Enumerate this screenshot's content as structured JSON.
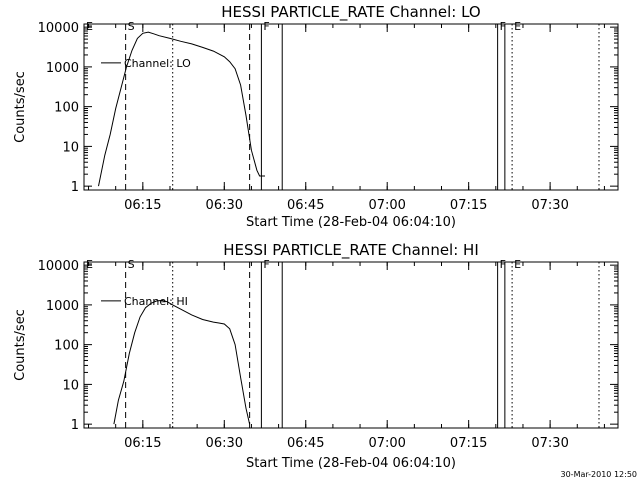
{
  "footer": {
    "timestamp": "30-Mar-2010 12:50"
  },
  "chart_data": [
    {
      "type": "line",
      "title": "HESSI PARTICLE_RATE Channel: LO",
      "xlabel": "Start Time (28-Feb-04 06:04:10)",
      "ylabel": "Counts/sec",
      "yscale": "log",
      "ylim": [
        0.8,
        12000
      ],
      "xlim": [
        "06:04:10",
        "07:42:30"
      ],
      "x_ticks": [
        "06:15",
        "06:30",
        "06:45",
        "07:00",
        "07:15",
        "07:30"
      ],
      "y_ticks": [
        "1",
        "10",
        "100",
        "1000",
        "10000"
      ],
      "legend": "Channel: LO",
      "series": [
        {
          "name": "Channel: LO",
          "x": [
            "06:06:50",
            "06:08:00",
            "06:09:00",
            "06:10:00",
            "06:11:00",
            "06:12:00",
            "06:13:00",
            "06:14:00",
            "06:15:00",
            "06:16:00",
            "06:17:00",
            "06:18:00",
            "06:20:00",
            "06:22:00",
            "06:24:00",
            "06:26:00",
            "06:28:00",
            "06:30:00",
            "06:31:00",
            "06:32:00",
            "06:33:00",
            "06:34:00",
            "06:35:00",
            "06:36:00",
            "06:36:30",
            "06:37:30"
          ],
          "values": [
            1,
            6,
            20,
            90,
            300,
            1000,
            2600,
            5200,
            7000,
            7500,
            6800,
            6100,
            5200,
            4400,
            3800,
            3100,
            2500,
            1800,
            1350,
            900,
            350,
            60,
            8,
            2.5,
            1.8,
            1.8
          ]
        }
      ],
      "markers": [
        {
          "label": "E",
          "time": "06:04:10",
          "style": "solid"
        },
        {
          "label": "S",
          "time": "06:11:50",
          "style": "dashed"
        },
        {
          "label": "",
          "time": "06:20:30",
          "style": "dotted"
        },
        {
          "label": "",
          "time": "06:34:40",
          "style": "dashed"
        },
        {
          "label": "F",
          "time": "06:36:50",
          "style": "solid"
        },
        {
          "label": "",
          "time": "06:40:40",
          "style": "solid"
        },
        {
          "label": "F",
          "time": "07:20:20",
          "style": "solid"
        },
        {
          "label": "",
          "time": "07:21:40",
          "style": "solid"
        },
        {
          "label": "E",
          "time": "07:23:00",
          "style": "dotted"
        },
        {
          "label": "",
          "time": "07:39:00",
          "style": "dotted"
        }
      ]
    },
    {
      "type": "line",
      "title": "HESSI PARTICLE_RATE Channel: HI",
      "xlabel": "Start Time (28-Feb-04 06:04:10)",
      "ylabel": "Counts/sec",
      "yscale": "log",
      "ylim": [
        0.8,
        12000
      ],
      "xlim": [
        "06:04:10",
        "07:42:30"
      ],
      "x_ticks": [
        "06:15",
        "06:30",
        "06:45",
        "07:00",
        "07:15",
        "07:30"
      ],
      "y_ticks": [
        "1",
        "10",
        "100",
        "1000",
        "10000"
      ],
      "legend": "Channel: HI",
      "series": [
        {
          "name": "Channel: HI",
          "x": [
            "06:09:40",
            "06:10:30",
            "06:11:30",
            "06:12:30",
            "06:13:30",
            "06:14:30",
            "06:15:30",
            "06:16:30",
            "06:17:30",
            "06:18:30",
            "06:19:30",
            "06:20:30",
            "06:22:00",
            "06:24:00",
            "06:26:00",
            "06:28:00",
            "06:29:00",
            "06:30:00",
            "06:31:00",
            "06:32:00",
            "06:33:00",
            "06:34:00",
            "06:34:40"
          ],
          "values": [
            1,
            4,
            12,
            60,
            200,
            500,
            850,
            1100,
            1250,
            1300,
            1200,
            1000,
            780,
            560,
            430,
            370,
            350,
            330,
            250,
            100,
            15,
            2.5,
            1
          ]
        }
      ],
      "markers": [
        {
          "label": "E",
          "time": "06:04:10",
          "style": "solid"
        },
        {
          "label": "S",
          "time": "06:11:50",
          "style": "dashed"
        },
        {
          "label": "",
          "time": "06:20:30",
          "style": "dotted"
        },
        {
          "label": "",
          "time": "06:34:40",
          "style": "dashed"
        },
        {
          "label": "F",
          "time": "06:36:50",
          "style": "solid"
        },
        {
          "label": "",
          "time": "06:40:40",
          "style": "solid"
        },
        {
          "label": "F",
          "time": "07:20:20",
          "style": "solid"
        },
        {
          "label": "",
          "time": "07:21:40",
          "style": "solid"
        },
        {
          "label": "E",
          "time": "07:23:00",
          "style": "dotted"
        },
        {
          "label": "",
          "time": "07:39:00",
          "style": "dotted"
        }
      ]
    }
  ]
}
